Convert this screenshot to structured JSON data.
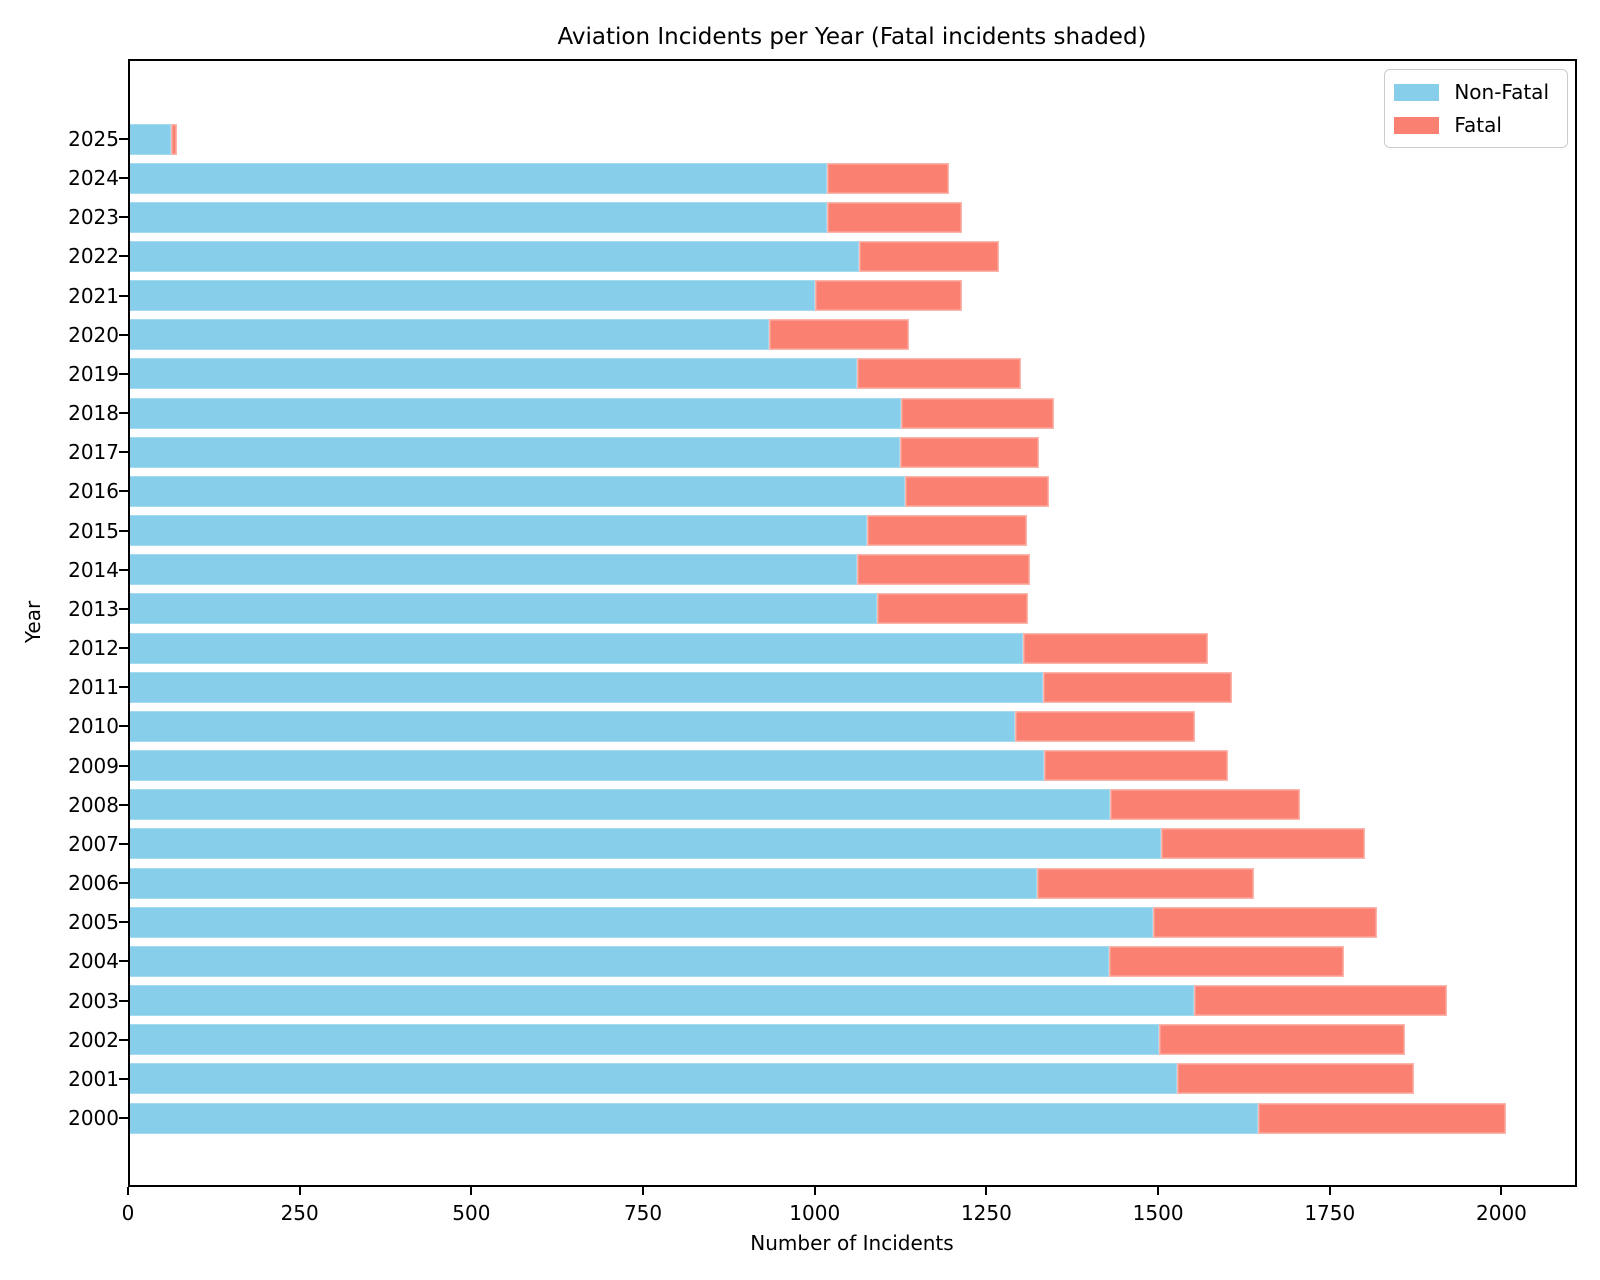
{
  "chart_data": {
    "type": "bar",
    "orientation": "horizontal",
    "stacked": true,
    "title": "Aviation Incidents per Year (Fatal incidents shaded)",
    "xlabel": "Number of Incidents",
    "ylabel": "Year",
    "categories": [
      "2025",
      "2024",
      "2023",
      "2022",
      "2021",
      "2020",
      "2019",
      "2018",
      "2017",
      "2016",
      "2015",
      "2014",
      "2013",
      "2012",
      "2011",
      "2010",
      "2009",
      "2008",
      "2007",
      "2006",
      "2005",
      "2004",
      "2003",
      "2002",
      "2001",
      "2000"
    ],
    "series": [
      {
        "name": "Non-Fatal",
        "color": "#87CEEB",
        "values": [
          63,
          1018,
          1018,
          1064,
          1001,
          934,
          1062,
          1125,
          1124,
          1132,
          1076,
          1061,
          1091,
          1303,
          1332,
          1291,
          1334,
          1430,
          1504,
          1324,
          1493,
          1428,
          1552,
          1501,
          1527,
          1645
        ]
      },
      {
        "name": "Fatal",
        "color": "#FA8072",
        "values": [
          9,
          178,
          197,
          204,
          213,
          203,
          239,
          223,
          203,
          209,
          233,
          252,
          220,
          269,
          275,
          263,
          268,
          276,
          298,
          316,
          326,
          342,
          368,
          359,
          345,
          361
        ]
      }
    ],
    "xlim": [
      0,
      2110
    ],
    "xticks": [
      0,
      250,
      500,
      750,
      1000,
      1250,
      1500,
      1750,
      2000
    ],
    "grid": false,
    "legend_position": "upper right",
    "legend": {
      "items": [
        {
          "label": "Non-Fatal",
          "color": "#87CEEB"
        },
        {
          "label": "Fatal",
          "color": "#FA8072"
        }
      ]
    }
  }
}
